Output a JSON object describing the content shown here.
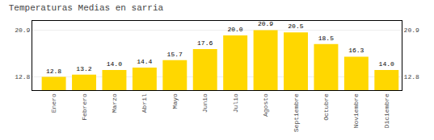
{
  "chart_data": {
    "type": "bar",
    "title": "Temperaturas Medias en sarria",
    "categories": [
      "Enero",
      "Febrero",
      "Marzo",
      "Abril",
      "Mayo",
      "Junio",
      "Julio",
      "Agosto",
      "Septiembre",
      "Octubre",
      "Noviembre",
      "Diciembre"
    ],
    "values": [
      12.8,
      13.2,
      14.0,
      14.4,
      15.7,
      17.6,
      20.0,
      20.9,
      20.5,
      18.5,
      16.3,
      14.0
    ],
    "value_labels": [
      "12.8",
      "13.2",
      "14.0",
      "14.4",
      "15.7",
      "17.6",
      "20.0",
      "20.9",
      "20.5",
      "18.5",
      "16.3",
      "14.0"
    ],
    "color": "#FFD700",
    "ylim": [
      10.5,
      22.5
    ],
    "yticks": [
      12.8,
      20.9
    ],
    "y2lim": [
      10.5,
      22.5
    ],
    "y2ticks": [
      12.8,
      20.9
    ],
    "grid": true,
    "data_labels": true
  }
}
